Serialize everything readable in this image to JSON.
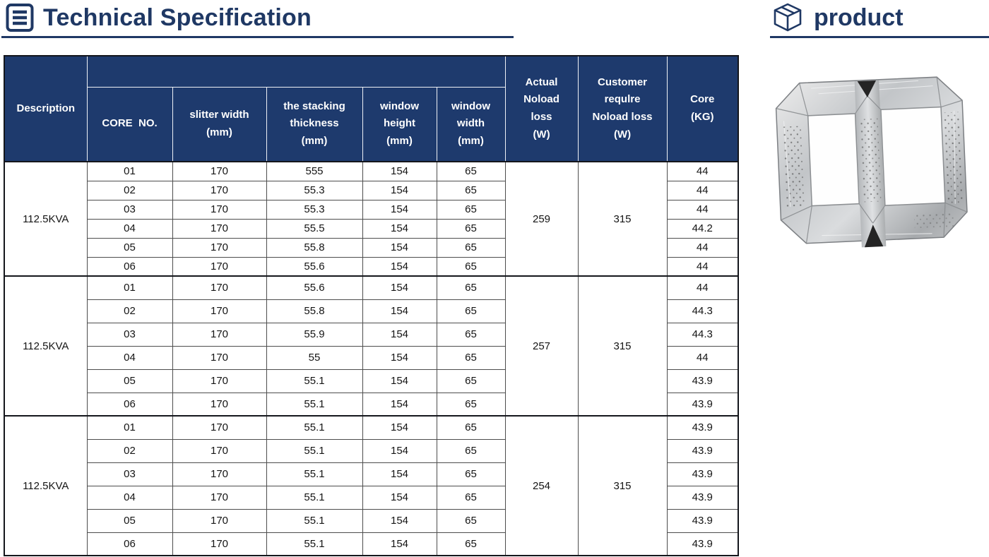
{
  "theme": {
    "accent": "#1f3864",
    "header_bg": "#1e3a6d",
    "border_heavy": "#14161c",
    "border_light": "#4d4d4d"
  },
  "header": {
    "title": "Technical Specification",
    "title_icon": "list-document-icon",
    "product_label": "product",
    "product_icon": "cube-icon"
  },
  "table": {
    "columns": {
      "description": "Description",
      "core_no": "CORE  NO.",
      "slitter_width": "slitter width\n(mm)",
      "stacking_thickness": "the stacking\nthickness\n(mm)",
      "window_height": "window\nheight\n(mm)",
      "window_width": "window\nwidth\n(mm)",
      "actual_noload_loss": "Actual\nNoload\nloss\n(W)",
      "customer_require_noload_loss": "Customer\nrequlre\nNoload loss\n(W)",
      "core_kg": "Core\n(KG)"
    },
    "groups": [
      {
        "description": "112.5KVA",
        "actual_noload_loss": "259",
        "customer_require_noload_loss": "315",
        "rows": [
          {
            "core_no": "01",
            "slitter_width": "170",
            "stacking_thickness": "555",
            "window_height": "154",
            "window_width": "65",
            "core_kg": "44"
          },
          {
            "core_no": "02",
            "slitter_width": "170",
            "stacking_thickness": "55.3",
            "window_height": "154",
            "window_width": "65",
            "core_kg": "44"
          },
          {
            "core_no": "03",
            "slitter_width": "170",
            "stacking_thickness": "55.3",
            "window_height": "154",
            "window_width": "65",
            "core_kg": "44"
          },
          {
            "core_no": "04",
            "slitter_width": "170",
            "stacking_thickness": "55.5",
            "window_height": "154",
            "window_width": "65",
            "core_kg": "44.2"
          },
          {
            "core_no": "05",
            "slitter_width": "170",
            "stacking_thickness": "55.8",
            "window_height": "154",
            "window_width": "65",
            "core_kg": "44"
          },
          {
            "core_no": "06",
            "slitter_width": "170",
            "stacking_thickness": "55.6",
            "window_height": "154",
            "window_width": "65",
            "core_kg": "44"
          }
        ]
      },
      {
        "description": "112.5KVA",
        "actual_noload_loss": "257",
        "customer_require_noload_loss": "315",
        "rows": [
          {
            "core_no": "01",
            "slitter_width": "170",
            "stacking_thickness": "55.6",
            "window_height": "154",
            "window_width": "65",
            "core_kg": "44"
          },
          {
            "core_no": "02",
            "slitter_width": "170",
            "stacking_thickness": "55.8",
            "window_height": "154",
            "window_width": "65",
            "core_kg": "44.3"
          },
          {
            "core_no": "03",
            "slitter_width": "170",
            "stacking_thickness": "55.9",
            "window_height": "154",
            "window_width": "65",
            "core_kg": "44.3"
          },
          {
            "core_no": "04",
            "slitter_width": "170",
            "stacking_thickness": "55",
            "window_height": "154",
            "window_width": "65",
            "core_kg": "44"
          },
          {
            "core_no": "05",
            "slitter_width": "170",
            "stacking_thickness": "55.1",
            "window_height": "154",
            "window_width": "65",
            "core_kg": "43.9"
          },
          {
            "core_no": "06",
            "slitter_width": "170",
            "stacking_thickness": "55.1",
            "window_height": "154",
            "window_width": "65",
            "core_kg": "43.9"
          }
        ]
      },
      {
        "description": "112.5KVA",
        "actual_noload_loss": "254",
        "customer_require_noload_loss": "315",
        "rows": [
          {
            "core_no": "01",
            "slitter_width": "170",
            "stacking_thickness": "55.1",
            "window_height": "154",
            "window_width": "65",
            "core_kg": "43.9"
          },
          {
            "core_no": "02",
            "slitter_width": "170",
            "stacking_thickness": "55.1",
            "window_height": "154",
            "window_width": "65",
            "core_kg": "43.9"
          },
          {
            "core_no": "03",
            "slitter_width": "170",
            "stacking_thickness": "55.1",
            "window_height": "154",
            "window_width": "65",
            "core_kg": "43.9"
          },
          {
            "core_no": "04",
            "slitter_width": "170",
            "stacking_thickness": "55.1",
            "window_height": "154",
            "window_width": "65",
            "core_kg": "43.9"
          },
          {
            "core_no": "05",
            "slitter_width": "170",
            "stacking_thickness": "55.1",
            "window_height": "154",
            "window_width": "65",
            "core_kg": "43.9"
          },
          {
            "core_no": "06",
            "slitter_width": "170",
            "stacking_thickness": "55.1",
            "window_height": "154",
            "window_width": "65",
            "core_kg": "43.9"
          }
        ]
      }
    ]
  },
  "product_image": {
    "name": "transformer-core-photo"
  }
}
